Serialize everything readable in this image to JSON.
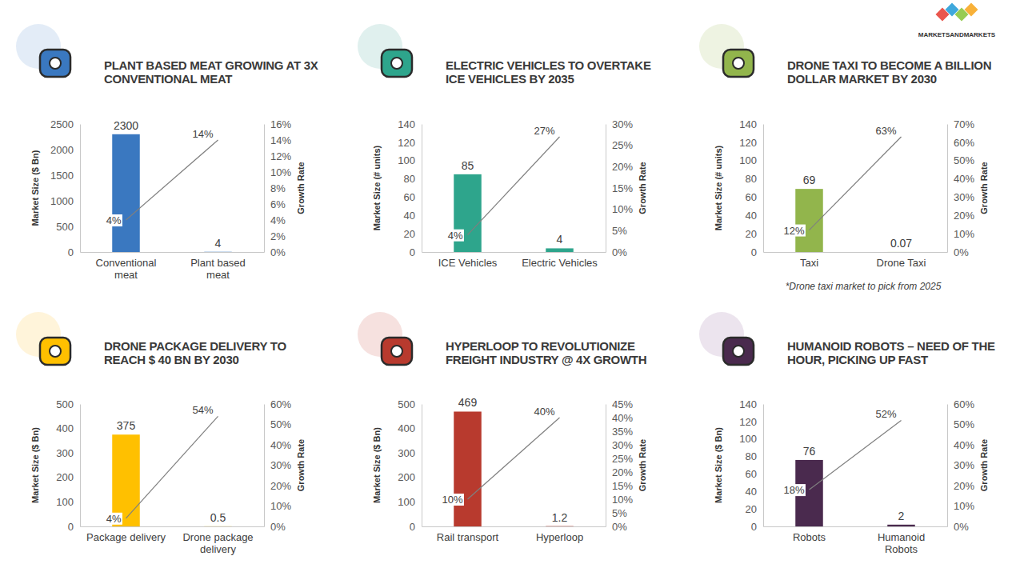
{
  "brand": "MARKETSANDMARKETS",
  "chart_data": [
    {
      "type": "bar",
      "title": "PLANT BASED MEAT GROWING AT 3X CONVENTIONAL MEAT",
      "categories": [
        "Conventional meat",
        "Plant based meat"
      ],
      "y_label": "Market Size ($ Bn)",
      "y2_label": "Growth Rate",
      "ylim": [
        0,
        2500
      ],
      "yticks": [
        0,
        500,
        1000,
        1500,
        2000,
        2500
      ],
      "y2lim": [
        0,
        16
      ],
      "y2ticks": [
        {
          "value": 0,
          "label": "0%"
        },
        {
          "value": 2,
          "label": "2%"
        },
        {
          "value": 4,
          "label": "4%"
        },
        {
          "value": 6,
          "label": "6%"
        },
        {
          "value": 8,
          "label": "8%"
        },
        {
          "value": 10,
          "label": "10%"
        },
        {
          "value": 12,
          "label": "12%"
        },
        {
          "value": 14,
          "label": "14%"
        },
        {
          "value": 16,
          "label": "16%"
        }
      ],
      "data_labels": true,
      "series": [
        {
          "type": "bar",
          "color": "#3a78c0",
          "values": [
            2300,
            4
          ]
        },
        {
          "type": "line",
          "axis": "y2",
          "color": "#7f7f7f",
          "values": [
            4,
            14
          ],
          "value_labels": [
            "4%",
            "14%"
          ]
        }
      ]
    },
    {
      "type": "bar",
      "title": "ELECTRIC VEHICLES TO OVERTAKE ICE VEHICLES BY 2035",
      "categories": [
        "ICE Vehicles",
        "Electric Vehicles"
      ],
      "y_label": "Market Size (# units)",
      "y2_label": "Growth Rate",
      "ylim": [
        0,
        140
      ],
      "yticks": [
        0,
        20,
        40,
        60,
        80,
        100,
        120,
        140
      ],
      "y2lim": [
        0,
        30
      ],
      "y2ticks": [
        {
          "value": 0,
          "label": "0%"
        },
        {
          "value": 5,
          "label": "5%"
        },
        {
          "value": 10,
          "label": "10%"
        },
        {
          "value": 15,
          "label": "15%"
        },
        {
          "value": 20,
          "label": "20%"
        },
        {
          "value": 25,
          "label": "25%"
        },
        {
          "value": 30,
          "label": "30%"
        }
      ],
      "data_labels": true,
      "series": [
        {
          "type": "bar",
          "color": "#2ea58c",
          "values": [
            85,
            4
          ]
        },
        {
          "type": "line",
          "axis": "y2",
          "color": "#7f7f7f",
          "values": [
            4,
            27
          ],
          "value_labels": [
            "4%",
            "27%"
          ]
        }
      ]
    },
    {
      "type": "bar",
      "title": "DRONE TAXI TO BECOME A BILLION DOLLAR MARKET BY 2030",
      "categories": [
        "Taxi",
        "Drone Taxi"
      ],
      "y_label": "Market Size (# units)",
      "y2_label": "Growth Rate",
      "ylim": [
        0,
        140
      ],
      "yticks": [
        0,
        20,
        40,
        60,
        80,
        100,
        120,
        140
      ],
      "y2lim": [
        0,
        70
      ],
      "y2ticks": [
        {
          "value": 0,
          "label": "0%"
        },
        {
          "value": 10,
          "label": "10%"
        },
        {
          "value": 20,
          "label": "20%"
        },
        {
          "value": 30,
          "label": "30%"
        },
        {
          "value": 40,
          "label": "40%"
        },
        {
          "value": 50,
          "label": "50%"
        },
        {
          "value": 60,
          "label": "60%"
        },
        {
          "value": 70,
          "label": "70%"
        }
      ],
      "data_labels": true,
      "annotation": "*Drone taxi market to pick from 2025",
      "series": [
        {
          "type": "bar",
          "color": "#92b54c",
          "values": [
            69,
            0.07
          ]
        },
        {
          "type": "line",
          "axis": "y2",
          "color": "#7f7f7f",
          "values": [
            12,
            63
          ],
          "value_labels": [
            "12%",
            "63%"
          ]
        }
      ]
    },
    {
      "type": "bar",
      "title": "DRONE PACKAGE DELIVERY TO REACH $ 40 BN BY 2030",
      "categories": [
        "Package delivery",
        "Drone package delivery"
      ],
      "y_label": "Market Size ($ Bn)",
      "y2_label": "Growth Rate",
      "ylim": [
        0,
        500
      ],
      "yticks": [
        0,
        100,
        200,
        300,
        400,
        500
      ],
      "y2lim": [
        0,
        60
      ],
      "y2ticks": [
        {
          "value": 0,
          "label": "0%"
        },
        {
          "value": 10,
          "label": "10%"
        },
        {
          "value": 20,
          "label": "20%"
        },
        {
          "value": 30,
          "label": "30%"
        },
        {
          "value": 40,
          "label": "40%"
        },
        {
          "value": 50,
          "label": "50%"
        },
        {
          "value": 60,
          "label": "60%"
        }
      ],
      "data_labels": true,
      "series": [
        {
          "type": "bar",
          "color": "#ffc000",
          "values": [
            375,
            0.5
          ]
        },
        {
          "type": "line",
          "axis": "y2",
          "color": "#7f7f7f",
          "values": [
            4,
            54
          ],
          "value_labels": [
            "4%",
            "54%"
          ]
        }
      ]
    },
    {
      "type": "bar",
      "title": "HYPERLOOP TO REVOLUTIONIZE FREIGHT INDUSTRY @ 4X GROWTH",
      "categories": [
        "Rail transport",
        "Hyperloop"
      ],
      "y_label": "Market Size ($ Bn)",
      "y2_label": "Growth Rate",
      "ylim": [
        0,
        500
      ],
      "yticks": [
        0,
        100,
        200,
        300,
        400,
        500
      ],
      "y2lim": [
        0,
        45
      ],
      "y2ticks": [
        {
          "value": 0,
          "label": "0%"
        },
        {
          "value": 5,
          "label": "5%"
        },
        {
          "value": 10,
          "label": "10%"
        },
        {
          "value": 15,
          "label": "15%"
        },
        {
          "value": 20,
          "label": "20%"
        },
        {
          "value": 25,
          "label": "25%"
        },
        {
          "value": 30,
          "label": "30%"
        },
        {
          "value": 35,
          "label": "35%"
        },
        {
          "value": 40,
          "label": "40%"
        },
        {
          "value": 45,
          "label": "45%"
        }
      ],
      "data_labels": true,
      "series": [
        {
          "type": "bar",
          "color": "#b83a2e",
          "values": [
            469,
            1.2
          ]
        },
        {
          "type": "line",
          "axis": "y2",
          "color": "#7f7f7f",
          "values": [
            10,
            40
          ],
          "value_labels": [
            "10%",
            "40%"
          ]
        }
      ]
    },
    {
      "type": "bar",
      "title": "HUMANOID ROBOTS – NEED OF THE HOUR, PICKING UP FAST",
      "categories": [
        "Robots",
        "Humanoid Robots"
      ],
      "y_label": "Market Size ($ Bn)",
      "y2_label": "Growth Rate",
      "ylim": [
        0,
        140
      ],
      "yticks": [
        0,
        20,
        40,
        60,
        80,
        100,
        120,
        140
      ],
      "y2lim": [
        0,
        60
      ],
      "y2ticks": [
        {
          "value": 0,
          "label": "0%"
        },
        {
          "value": 10,
          "label": "10%"
        },
        {
          "value": 20,
          "label": "20%"
        },
        {
          "value": 30,
          "label": "30%"
        },
        {
          "value": 40,
          "label": "40%"
        },
        {
          "value": 50,
          "label": "50%"
        },
        {
          "value": 60,
          "label": "60%"
        }
      ],
      "data_labels": true,
      "series": [
        {
          "type": "bar",
          "color": "#4a2a4e",
          "values": [
            76,
            2
          ]
        },
        {
          "type": "line",
          "axis": "y2",
          "color": "#7f7f7f",
          "values": [
            18,
            52
          ],
          "value_labels": [
            "18%",
            "52%"
          ]
        }
      ]
    }
  ]
}
